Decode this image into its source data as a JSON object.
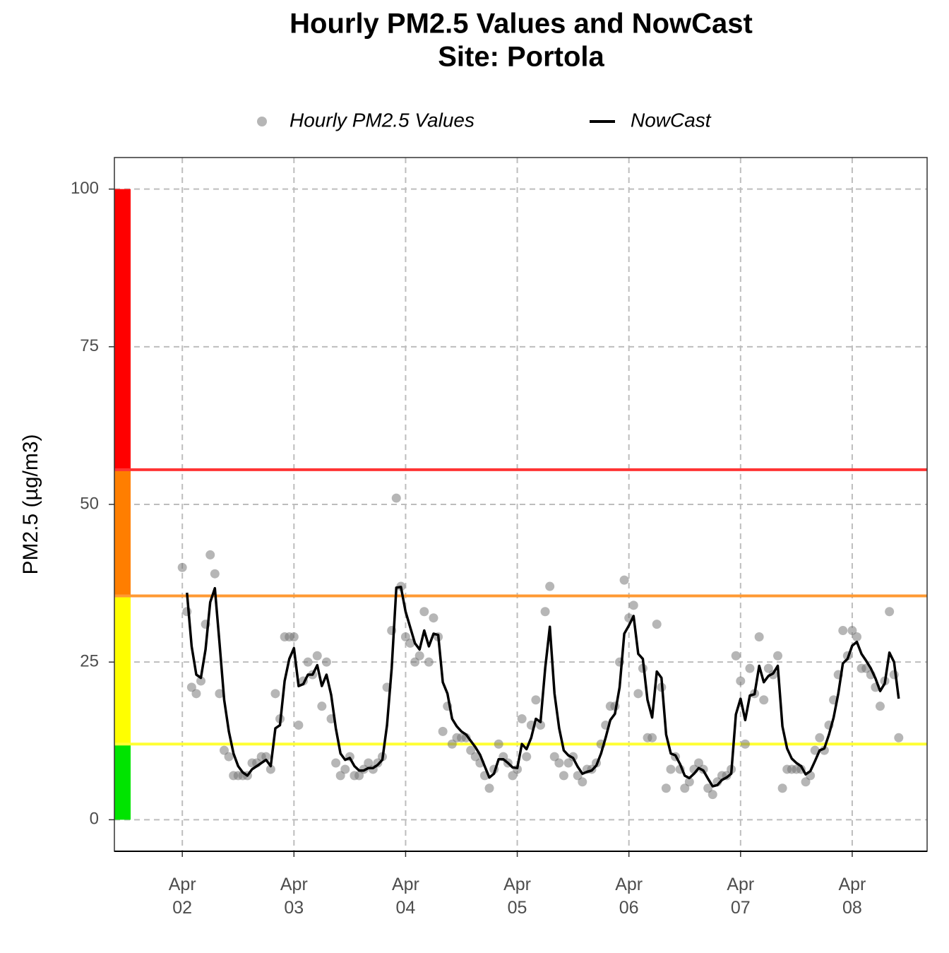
{
  "chart_data": {
    "type": "scatter",
    "title": "Hourly PM2.5 Values and NowCast",
    "subtitle": "Site: Portola",
    "y_label": "PM2.5 (µg/m3)",
    "x": [
      0,
      1,
      2,
      3,
      4,
      5,
      6,
      7,
      8,
      9,
      10,
      11,
      12,
      13,
      14,
      15,
      16,
      17,
      18,
      19,
      20,
      21,
      22,
      23,
      24,
      25,
      26,
      27,
      28,
      29,
      30,
      31,
      32,
      33,
      34,
      35,
      36,
      37,
      38,
      39,
      40,
      41,
      42,
      43,
      44,
      45,
      46,
      47,
      48,
      49,
      50,
      51,
      52,
      53,
      54,
      55,
      56,
      57,
      58,
      59,
      60,
      61,
      62,
      63,
      64,
      65,
      66,
      67,
      68,
      69,
      70,
      71,
      72,
      73,
      74,
      75,
      76,
      77,
      78,
      79,
      80,
      81,
      82,
      83,
      84,
      85,
      86,
      87,
      88,
      89,
      90,
      91,
      92,
      93,
      94,
      95,
      96,
      97,
      98,
      99,
      100,
      101,
      102,
      103,
      104,
      105,
      106,
      107,
      108,
      109,
      110,
      111,
      112,
      113,
      114,
      115,
      116,
      117,
      118,
      119,
      120,
      121,
      122,
      123,
      124,
      125,
      126,
      127,
      128,
      129,
      130,
      131,
      132,
      133,
      134,
      135,
      136,
      137,
      138,
      139,
      140,
      141,
      142,
      143,
      144,
      145,
      146,
      147,
      148,
      149,
      150,
      151,
      152,
      153,
      154
    ],
    "series": [
      {
        "name": "Hourly PM2.5 Values",
        "type": "scatter",
        "color": "rgba(110,110,110,0.5)",
        "values": [
          40,
          33,
          21,
          20,
          22,
          31,
          42,
          39,
          20,
          11,
          10,
          7,
          7,
          7,
          7,
          9,
          9,
          10,
          10,
          8,
          20,
          16,
          29,
          29,
          29,
          15,
          22,
          25,
          23,
          26,
          18,
          25,
          16,
          9,
          7,
          8,
          10,
          7,
          7,
          8,
          9,
          8,
          9,
          10,
          21,
          30,
          51,
          37,
          29,
          28,
          25,
          26,
          33,
          25,
          32,
          29,
          14,
          18,
          12,
          13,
          13,
          13,
          11,
          10,
          9,
          7,
          5,
          8,
          12,
          10,
          9,
          7,
          8,
          16,
          10,
          15,
          19,
          15,
          33,
          37,
          10,
          9,
          7,
          9,
          10,
          7,
          6,
          8,
          8,
          9,
          12,
          15,
          18,
          18,
          25,
          38,
          32,
          34,
          20,
          24,
          13,
          13,
          31,
          21,
          5,
          8,
          10,
          8,
          5,
          6,
          8,
          9,
          8,
          5,
          4,
          6,
          7,
          7,
          8,
          26,
          22,
          12,
          24,
          20,
          29,
          19,
          24,
          23,
          26,
          5,
          8,
          8,
          8,
          8,
          6,
          7,
          11,
          13,
          11,
          15,
          19,
          23,
          30,
          26,
          30,
          29,
          24,
          24,
          23,
          21,
          18,
          22,
          33,
          23,
          13
        ]
      },
      {
        "name": "NowCast",
        "type": "line",
        "color": "#000000",
        "values": [
          null,
          36,
          27.5,
          23,
          22.5,
          27,
          34.5,
          36.7,
          28,
          19,
          14,
          10.5,
          8.5,
          7.5,
          7,
          8,
          8.5,
          9,
          9.5,
          8.5,
          14.5,
          15,
          22,
          25.5,
          27.2,
          21.2,
          21.5,
          23,
          23,
          24.5,
          21.2,
          23,
          19.8,
          14.5,
          10.5,
          9.5,
          9.8,
          8.5,
          7.8,
          7.8,
          8.2,
          8.2,
          8.7,
          9.5,
          15,
          24,
          36.8,
          36.9,
          33,
          30.5,
          28,
          27,
          30,
          27.5,
          29.5,
          29.3,
          21.8,
          20,
          16,
          14.8,
          14,
          13.5,
          12.5,
          11.5,
          10.3,
          8.5,
          6.7,
          7.3,
          9.6,
          9.6,
          9,
          8.3,
          8.2,
          12,
          11.2,
          13,
          16,
          15.5,
          24,
          30.6,
          20,
          14.5,
          11,
          10.2,
          9.8,
          8.4,
          7.3,
          7.6,
          7.8,
          8.6,
          10.5,
          13,
          15.8,
          16.8,
          21,
          29.5,
          30.8,
          32.3,
          26.3,
          25.5,
          19,
          16.2,
          23.5,
          22.5,
          13.5,
          10.5,
          10.2,
          8.8,
          7,
          6.6,
          7.3,
          8.2,
          7.8,
          6.5,
          5.3,
          5.5,
          6.3,
          6.7,
          7.3,
          16.7,
          19.2,
          15.8,
          19.7,
          19.9,
          24.4,
          21.8,
          22.8,
          23.2,
          24.4,
          14.8,
          11.3,
          9.7,
          9,
          8.5,
          7.2,
          7.7,
          9.3,
          11,
          11.3,
          13.5,
          16.2,
          20,
          24.8,
          25.5,
          27.6,
          28.2,
          26.3,
          25.2,
          24,
          22.4,
          20.4,
          21.6,
          26.5,
          25,
          19.2
        ]
      }
    ],
    "xlim": [
      -14.6,
      160.1
    ],
    "xticks": [
      {
        "value": 0,
        "label": "Apr\n02"
      },
      {
        "value": 24,
        "label": "Apr\n03"
      },
      {
        "value": 48,
        "label": "Apr\n04"
      },
      {
        "value": 72,
        "label": "Apr\n05"
      },
      {
        "value": 96,
        "label": "Apr\n06"
      },
      {
        "value": 120,
        "label": "Apr\n07"
      },
      {
        "value": 144,
        "label": "Apr\n08"
      }
    ],
    "ylim": [
      -5,
      105
    ],
    "yticks": [
      0,
      25,
      50,
      75,
      100
    ],
    "grid": true,
    "legend": "top",
    "aqi": {
      "breaks": [
        0,
        12,
        35.5,
        55.5,
        100
      ],
      "colors": [
        "#00e400",
        "#ffff00",
        "#ff7e00",
        "#ff0000"
      ],
      "line_colors": [
        "#ffff33",
        "#ff9933",
        "#ff3333"
      ]
    }
  }
}
